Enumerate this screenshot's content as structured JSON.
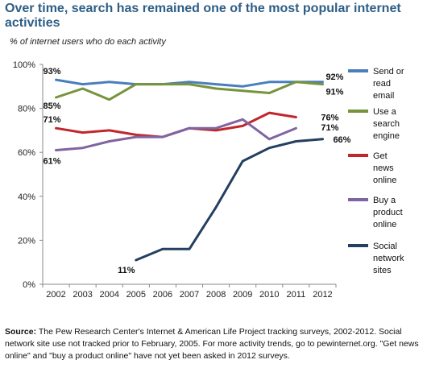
{
  "title": "Over time, search has remained one of the most popular internet activities",
  "subtitle": "% of internet users who do each activity",
  "source": {
    "label": "Source:",
    "text": "The Pew Research Center's Internet & American Life Project tracking surveys, 2002-2012. Social network site use not tracked prior to February, 2005. For more activity trends, go to pewinternet.org. \"Get news online\" and \"buy a product online\" have not yet been asked in 2012 surveys."
  },
  "chart_data": {
    "type": "line",
    "x": [
      "2002",
      "2003",
      "2004",
      "2005",
      "2006",
      "2007",
      "2008",
      "2009",
      "2010",
      "2011",
      "2012"
    ],
    "ylim": [
      0,
      100
    ],
    "yticks": [
      "0%",
      "20%",
      "40%",
      "60%",
      "80%",
      "100%"
    ],
    "grid": false,
    "legend_position": "right",
    "series": [
      {
        "name": "Send or read email",
        "color": "#4A7EBB",
        "values": [
          93,
          91,
          92,
          91,
          91,
          92,
          91,
          90,
          92,
          92,
          92
        ]
      },
      {
        "name": "Use a search engine",
        "color": "#77933C",
        "values": [
          85,
          89,
          84,
          91,
          91,
          91,
          89,
          88,
          87,
          92,
          91
        ]
      },
      {
        "name": "Get news online",
        "color": "#C0272D",
        "values": [
          71,
          69,
          70,
          68,
          67,
          71,
          70,
          72,
          78,
          76,
          null
        ]
      },
      {
        "name": "Buy a product online",
        "color": "#8064A2",
        "values": [
          61,
          62,
          65,
          67,
          67,
          71,
          71,
          75,
          66,
          71,
          null
        ]
      },
      {
        "name": "Social network sites",
        "color": "#243F60",
        "values": [
          null,
          null,
          null,
          11,
          16,
          16,
          35,
          56,
          62,
          65,
          66
        ]
      }
    ],
    "legend_labels": [
      [
        "Send or",
        "read",
        "email"
      ],
      [
        "Use a",
        "search",
        "engine"
      ],
      [
        "Get",
        "news",
        "online"
      ],
      [
        "Buy a",
        "product",
        "online"
      ],
      [
        "Social",
        "network",
        "sites"
      ]
    ],
    "annotations": [
      {
        "text": "93%",
        "series": 0,
        "x": "2002",
        "y": 93
      },
      {
        "text": "85%",
        "series": 1,
        "x": "2002",
        "y": 85
      },
      {
        "text": "71%",
        "series": 2,
        "x": "2002",
        "y": 71
      },
      {
        "text": "61%",
        "series": 3,
        "x": "2002",
        "y": 61
      },
      {
        "text": "11%",
        "series": 4,
        "x": "2005",
        "y": 11
      },
      {
        "text": "92%",
        "series": 0,
        "x": "2012",
        "y": 92
      },
      {
        "text": "91%",
        "series": 1,
        "x": "2012",
        "y": 91
      },
      {
        "text": "76%",
        "series": 2,
        "x": "2011",
        "y": 76
      },
      {
        "text": "71%",
        "series": 3,
        "x": "2011",
        "y": 71
      },
      {
        "text": "66%",
        "series": 4,
        "x": "2012",
        "y": 66
      }
    ]
  }
}
